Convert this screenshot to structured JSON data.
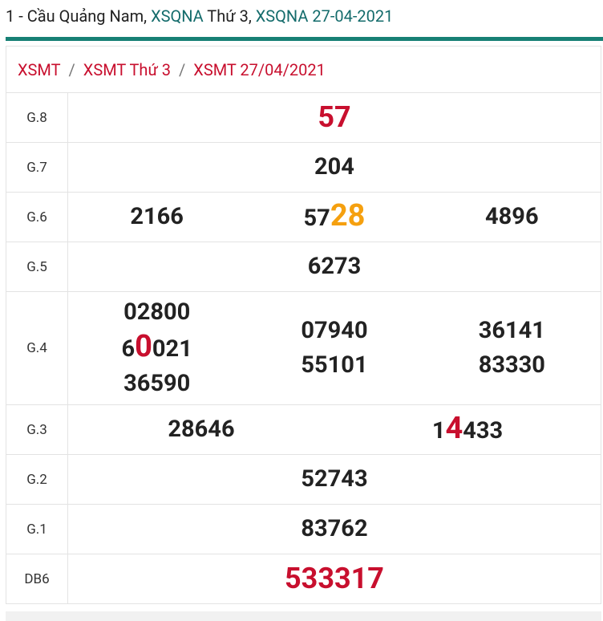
{
  "header": {
    "parts": [
      {
        "text": "1 - Cầu Quảng Nam, "
      },
      {
        "text": "XSQNA",
        "link": true
      },
      {
        "text": " Thứ 3, "
      },
      {
        "text": "XSQNA 27-04-2021",
        "link": true
      }
    ]
  },
  "breadcrumb": {
    "items": [
      "XSMT",
      "XSMT Thứ 3",
      "XSMT 27/04/2021"
    ],
    "separator": "/"
  },
  "table": {
    "rows": [
      {
        "label": "G.8",
        "color": "#c80f2e",
        "size": 36,
        "columns": [
          [
            [
              {
                "text": "57"
              }
            ]
          ]
        ]
      },
      {
        "label": "G.7",
        "columns": [
          [
            [
              {
                "text": "204"
              }
            ]
          ]
        ]
      },
      {
        "label": "G.6",
        "columns": [
          [
            [
              {
                "text": "2166"
              }
            ]
          ],
          [
            [
              {
                "text": "57"
              },
              {
                "text": "28",
                "color": "#f5a00f"
              }
            ]
          ],
          [
            [
              {
                "text": "4896"
              }
            ]
          ]
        ]
      },
      {
        "label": "G.5",
        "columns": [
          [
            [
              {
                "text": "6273"
              }
            ]
          ]
        ]
      },
      {
        "label": "G.4",
        "columns": [
          [
            [
              {
                "text": "02800"
              }
            ],
            [
              {
                "text": "6"
              },
              {
                "text": "0",
                "color": "#c80f2e"
              },
              {
                "text": "021"
              }
            ],
            [
              {
                "text": "36590"
              }
            ]
          ],
          [
            [
              {
                "text": "07940"
              }
            ],
            [
              {
                "text": "55101"
              }
            ]
          ],
          [
            [
              {
                "text": "36141"
              }
            ],
            [
              {
                "text": "83330"
              }
            ]
          ]
        ]
      },
      {
        "label": "G.3",
        "columns": [
          [
            [
              {
                "text": "28646"
              }
            ]
          ],
          [
            [
              {
                "text": "1"
              },
              {
                "text": "4",
                "color": "#c80f2e"
              },
              {
                "text": "433"
              }
            ]
          ]
        ]
      },
      {
        "label": "G.2",
        "columns": [
          [
            [
              {
                "text": "52743"
              }
            ]
          ]
        ]
      },
      {
        "label": "G.1",
        "columns": [
          [
            [
              {
                "text": "83762"
              }
            ]
          ]
        ]
      },
      {
        "label": "DB6",
        "color": "#c80f2e",
        "size": 36,
        "columns": [
          [
            [
              {
                "text": "533317"
              }
            ]
          ]
        ]
      }
    ]
  }
}
